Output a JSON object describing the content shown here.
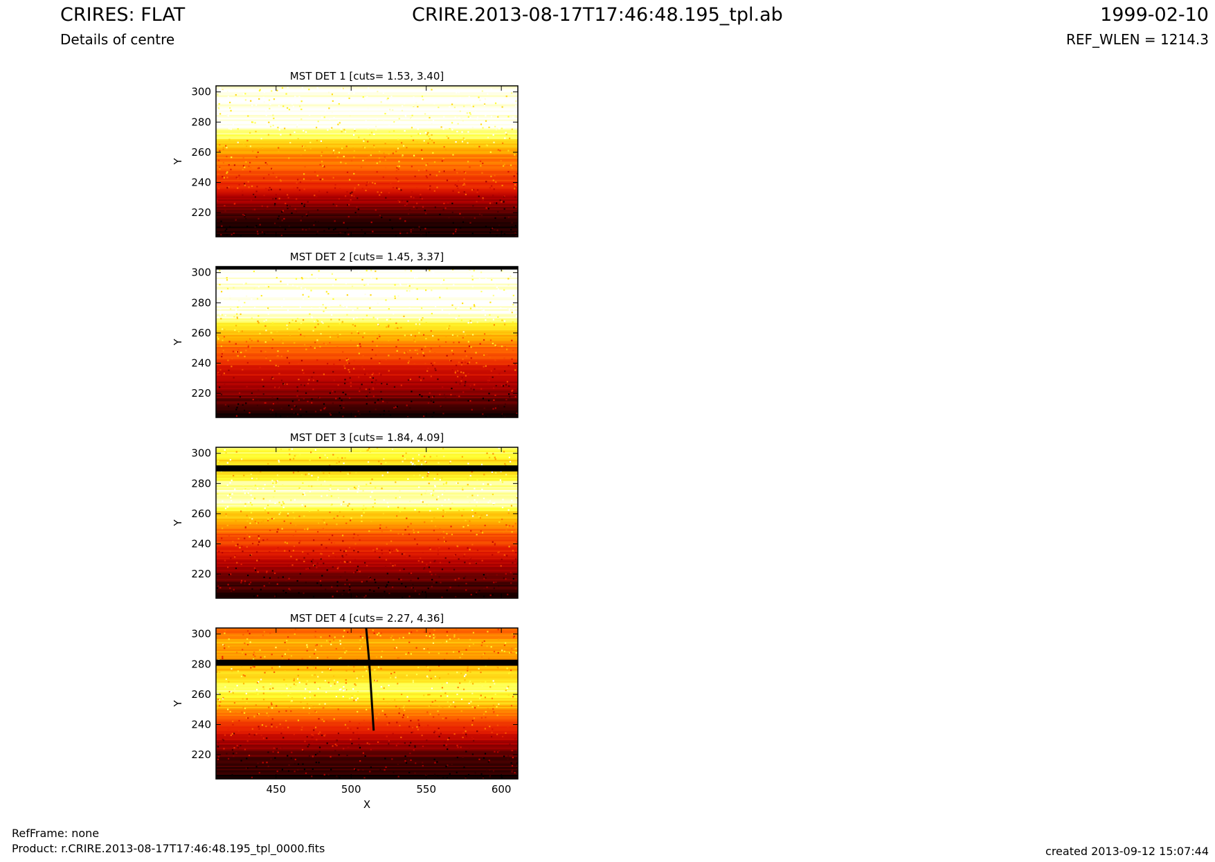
{
  "header": {
    "title": "CRIRES: FLAT",
    "subtitle": "Details of centre",
    "filename": "CRIRE.2013-08-17T17:46:48.195_tpl.ab",
    "date": "1999-02-10",
    "ref_wlen": "REF_WLEN = 1214.3"
  },
  "footer": {
    "refframe": "RefFrame: none",
    "product": "Product: r.CRIRE.2013-08-17T17:46:48.195_tpl_0000.fits",
    "created": "created 2013-09-12 15:07:44"
  },
  "colors": {
    "colormap": [
      "#000000",
      "#5a0000",
      "#b40000",
      "#e61e00",
      "#ff6400",
      "#ffb400",
      "#ffff32",
      "#ffffff"
    ],
    "bad_pixel": "#000000"
  },
  "chart_data": [
    {
      "type": "heatmap",
      "title": "MST DET 1 [cuts= 1.53, 3.40]",
      "xlabel": "",
      "ylabel": "Y",
      "xlim": [
        410,
        611
      ],
      "ylim": [
        204,
        304
      ],
      "xticks": [],
      "yticks": [
        220,
        240,
        260,
        280,
        300
      ],
      "colormap": "hot",
      "profile": [
        {
          "y": 204,
          "v": 0.03
        },
        {
          "y": 212,
          "v": 0.06
        },
        {
          "y": 220,
          "v": 0.12
        },
        {
          "y": 226,
          "v": 0.22
        },
        {
          "y": 230,
          "v": 0.3
        },
        {
          "y": 236,
          "v": 0.4
        },
        {
          "y": 242,
          "v": 0.48
        },
        {
          "y": 248,
          "v": 0.55
        },
        {
          "y": 254,
          "v": 0.6
        },
        {
          "y": 260,
          "v": 0.68
        },
        {
          "y": 266,
          "v": 0.78
        },
        {
          "y": 272,
          "v": 0.9
        },
        {
          "y": 278,
          "v": 1.0
        },
        {
          "y": 304,
          "v": 1.0
        }
      ],
      "bad_rows": []
    },
    {
      "type": "heatmap",
      "title": "MST DET 2 [cuts= 1.45, 3.37]",
      "xlabel": "",
      "ylabel": "Y",
      "xlim": [
        410,
        611
      ],
      "ylim": [
        204,
        304
      ],
      "xticks": [],
      "yticks": [
        220,
        240,
        260,
        280,
        300
      ],
      "colormap": "hot",
      "profile": [
        {
          "y": 204,
          "v": 0.04
        },
        {
          "y": 212,
          "v": 0.1
        },
        {
          "y": 220,
          "v": 0.2
        },
        {
          "y": 228,
          "v": 0.3
        },
        {
          "y": 236,
          "v": 0.4
        },
        {
          "y": 244,
          "v": 0.5
        },
        {
          "y": 252,
          "v": 0.6
        },
        {
          "y": 260,
          "v": 0.72
        },
        {
          "y": 266,
          "v": 0.82
        },
        {
          "y": 270,
          "v": 0.92
        },
        {
          "y": 274,
          "v": 1.0
        },
        {
          "y": 304,
          "v": 1.0
        }
      ],
      "bad_rows": [
        {
          "y0": 302,
          "y1": 304
        }
      ]
    },
    {
      "type": "heatmap",
      "title": "MST DET 3 [cuts= 1.84, 4.09]",
      "xlabel": "",
      "ylabel": "Y",
      "xlim": [
        410,
        611
      ],
      "ylim": [
        204,
        304
      ],
      "xticks": [],
      "yticks": [
        220,
        240,
        260,
        280,
        300
      ],
      "colormap": "hot",
      "profile": [
        {
          "y": 204,
          "v": 0.03
        },
        {
          "y": 212,
          "v": 0.1
        },
        {
          "y": 220,
          "v": 0.2
        },
        {
          "y": 228,
          "v": 0.32
        },
        {
          "y": 236,
          "v": 0.42
        },
        {
          "y": 244,
          "v": 0.52
        },
        {
          "y": 252,
          "v": 0.62
        },
        {
          "y": 258,
          "v": 0.74
        },
        {
          "y": 264,
          "v": 0.88
        },
        {
          "y": 270,
          "v": 0.98
        },
        {
          "y": 280,
          "v": 0.92
        },
        {
          "y": 286,
          "v": 0.82
        },
        {
          "y": 296,
          "v": 0.8
        },
        {
          "y": 300,
          "v": 0.85
        },
        {
          "y": 304,
          "v": 0.9
        }
      ],
      "bad_rows": [
        {
          "y0": 288,
          "y1": 292
        }
      ]
    },
    {
      "type": "heatmap",
      "title": "MST DET 4 [cuts= 2.27, 4.36]",
      "xlabel": "X",
      "ylabel": "Y",
      "xlim": [
        410,
        611
      ],
      "ylim": [
        204,
        304
      ],
      "xticks": [
        450,
        500,
        550,
        600
      ],
      "yticks": [
        220,
        240,
        260,
        280,
        300
      ],
      "colormap": "hot",
      "profile": [
        {
          "y": 204,
          "v": 0.03
        },
        {
          "y": 214,
          "v": 0.1
        },
        {
          "y": 224,
          "v": 0.2
        },
        {
          "y": 232,
          "v": 0.34
        },
        {
          "y": 240,
          "v": 0.48
        },
        {
          "y": 248,
          "v": 0.62
        },
        {
          "y": 256,
          "v": 0.78
        },
        {
          "y": 262,
          "v": 0.88
        },
        {
          "y": 270,
          "v": 0.82
        },
        {
          "y": 278,
          "v": 0.72
        },
        {
          "y": 286,
          "v": 0.66
        },
        {
          "y": 294,
          "v": 0.72
        },
        {
          "y": 300,
          "v": 0.62
        },
        {
          "y": 304,
          "v": 0.56
        }
      ],
      "bad_rows": [
        {
          "y0": 279,
          "y1": 283
        }
      ],
      "bad_column": [
        {
          "x": 510,
          "y": 304
        },
        {
          "x": 512,
          "y": 282
        },
        {
          "x": 515,
          "y": 236
        }
      ]
    }
  ]
}
